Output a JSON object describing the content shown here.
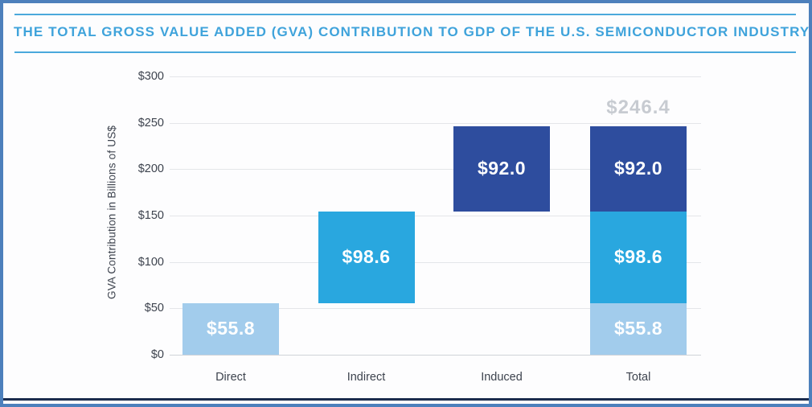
{
  "palette": {
    "light_blue": "#a2ccec",
    "mid_blue": "#29a7df",
    "dark_blue": "#2e4d9e",
    "title_blue": "#3fa3db",
    "rule_blue": "#4aa9dc",
    "annotation_gray": "#c7cbd1",
    "axis_text": "#3d434e",
    "gridline": "#e4e6e9",
    "frame_border": "#4d80bc",
    "frame_bottom_line": "#1b2c4e"
  },
  "header": {
    "title": "THE TOTAL GROSS VALUE ADDED (GVA) CONTRIBUTION TO GDP OF THE U.S. SEMICONDUCTOR INDUSTRY"
  },
  "chart_data": {
    "type": "bar",
    "subtype": "waterfall-stacked",
    "title": "THE TOTAL GROSS VALUE ADDED (GVA) CONTRIBUTION TO GDP OF THE U.S. SEMICONDUCTOR INDUSTRY",
    "xlabel": "",
    "ylabel": "GVA Contribution in Billions of US$",
    "ylim": [
      0,
      300
    ],
    "grid": true,
    "legend": false,
    "y_ticks": [
      {
        "label": "$0",
        "value": 0
      },
      {
        "label": "$50",
        "value": 50
      },
      {
        "label": "$100",
        "value": 100
      },
      {
        "label": "$150",
        "value": 150
      },
      {
        "label": "$200",
        "value": 200
      },
      {
        "label": "$250",
        "value": 250
      },
      {
        "label": "$300",
        "value": 300
      }
    ],
    "categories": [
      "Direct",
      "Indirect",
      "Induced",
      "Total"
    ],
    "values": {
      "direct": 55.8,
      "indirect": 98.6,
      "induced": 92.0,
      "total": 246.4
    },
    "bars": [
      {
        "category": "Direct",
        "segments": [
          {
            "from": 0,
            "to": 55.8,
            "value": 55.8,
            "label": "$55.8",
            "color": "light_blue"
          }
        ]
      },
      {
        "category": "Indirect",
        "segments": [
          {
            "from": 55.8,
            "to": 154.4,
            "value": 98.6,
            "label": "$98.6",
            "color": "mid_blue"
          }
        ]
      },
      {
        "category": "Induced",
        "segments": [
          {
            "from": 154.4,
            "to": 246.4,
            "value": 92.0,
            "label": "$92.0",
            "color": "dark_blue"
          }
        ]
      },
      {
        "category": "Total",
        "annotation": "$246.4",
        "segments": [
          {
            "from": 0,
            "to": 55.8,
            "value": 55.8,
            "label": "$55.8",
            "color": "light_blue"
          },
          {
            "from": 55.8,
            "to": 154.4,
            "value": 98.6,
            "label": "$98.6",
            "color": "mid_blue"
          },
          {
            "from": 154.4,
            "to": 246.4,
            "value": 92.0,
            "label": "$92.0",
            "color": "dark_blue"
          }
        ]
      }
    ]
  }
}
